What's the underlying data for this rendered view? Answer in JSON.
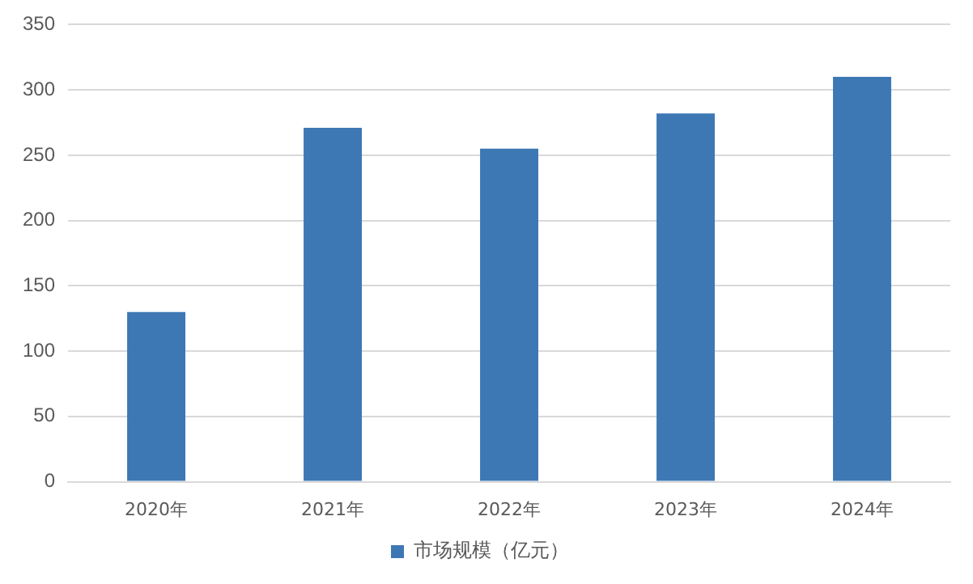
{
  "chart_data": {
    "type": "bar",
    "categories": [
      "2020年",
      "2021年",
      "2022年",
      "2023年",
      "2024年"
    ],
    "series": [
      {
        "name": "市场规模（亿元）",
        "color": "#3d78b5",
        "values": [
          130,
          271,
          255,
          282,
          310
        ]
      }
    ],
    "ylim": [
      0,
      350
    ],
    "yticks": [
      0,
      50,
      100,
      150,
      200,
      250,
      300,
      350
    ],
    "grid": "y",
    "legend": "bottom"
  }
}
